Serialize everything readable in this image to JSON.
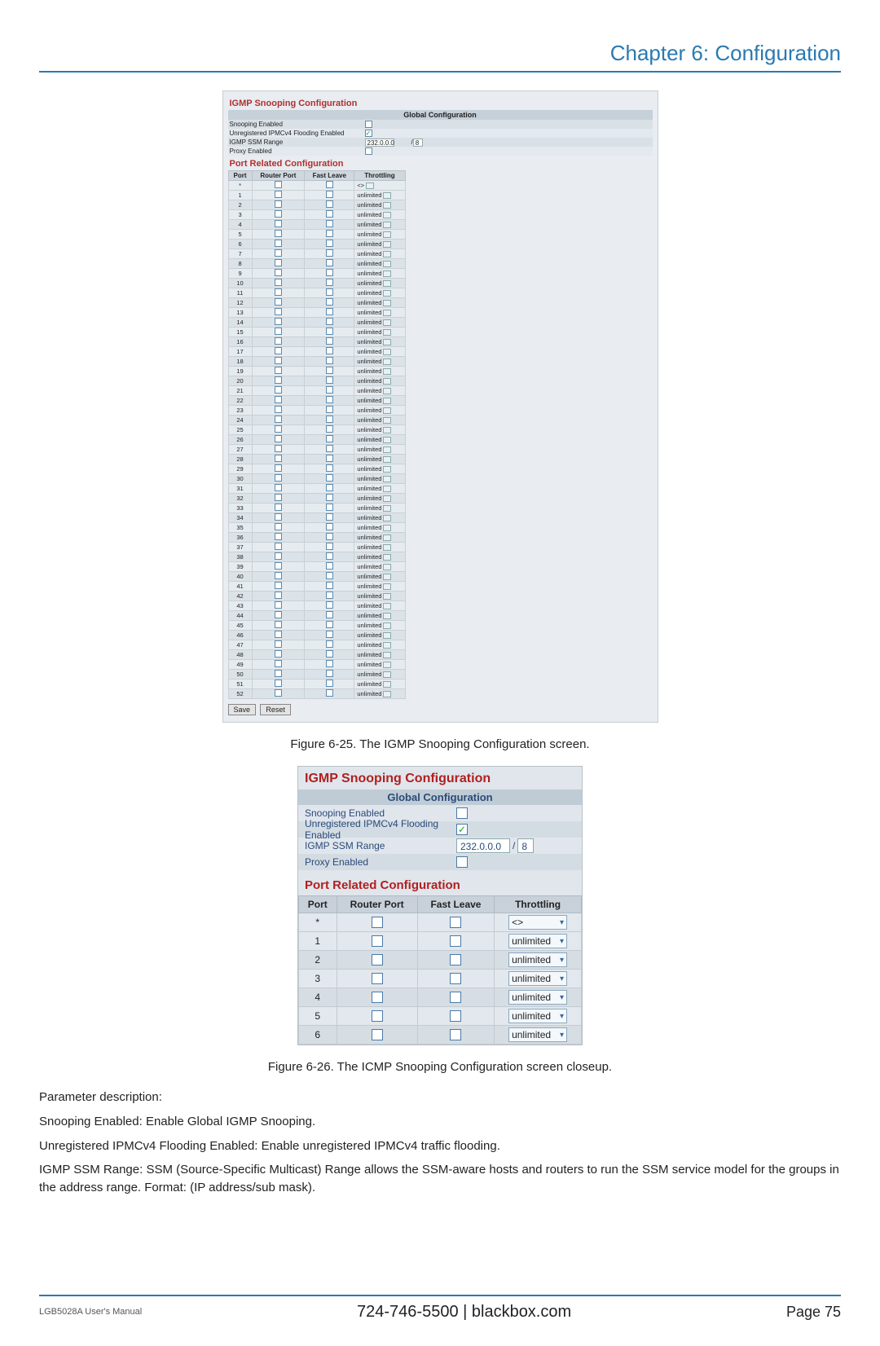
{
  "doc": {
    "chapter_title": "Chapter 6: Configuration",
    "fig1_caption": "Figure 6-25. The IGMP Snooping Configuration screen.",
    "fig2_caption": "Figure 6-26. The ICMP Snooping Configuration screen closeup.",
    "param_heading": "Parameter description:",
    "p1_lead": "Snooping Enabled:",
    "p1_rest": " Enable Global IGMP Snooping.",
    "p2_lead": "Unregistered IPMCv4 Flooding Enabled:",
    "p2_rest": " Enable unregistered IPMCv4 traffic flooding.",
    "p3_lead": "IGMP SSM Range:",
    "p3_rest": " SSM (Source-Specific Multicast) Range allows the SSM-aware hosts and routers to run the SSM service model for the groups in the address range. Format: (IP address/sub mask).",
    "footer_left": "LGB5028A User's Manual",
    "footer_center": "724-746-5500   |   blackbox.com",
    "footer_right": "Page 75"
  },
  "panel": {
    "title": "IGMP Snooping Configuration",
    "global_hdr": "Global Configuration",
    "rows": {
      "snooping": {
        "label": "Snooping Enabled",
        "checked": false
      },
      "flooding": {
        "label": "Unregistered IPMCv4 Flooding Enabled",
        "checked": true
      },
      "ssm": {
        "label": "IGMP SSM Range",
        "value": "232.0.0.0",
        "mask": "8"
      },
      "proxy": {
        "label": "Proxy Enabled",
        "checked": false
      }
    },
    "port_hdr": "Port Related Configuration",
    "cols": {
      "port": "Port",
      "router": "Router Port",
      "leave": "Fast Leave",
      "thr": "Throttling"
    },
    "star_row": {
      "port": "*",
      "thr": "<>"
    },
    "throttling_default": "unlimited",
    "big_port_count": 52,
    "close_port_count": 6,
    "buttons": {
      "save": "Save",
      "reset": "Reset"
    }
  },
  "colors": {
    "brand_blue": "#2a7ab0",
    "panel_bg": "#e0e6ec",
    "section_red": "#b02020",
    "header_band": "#c0ccd5"
  }
}
